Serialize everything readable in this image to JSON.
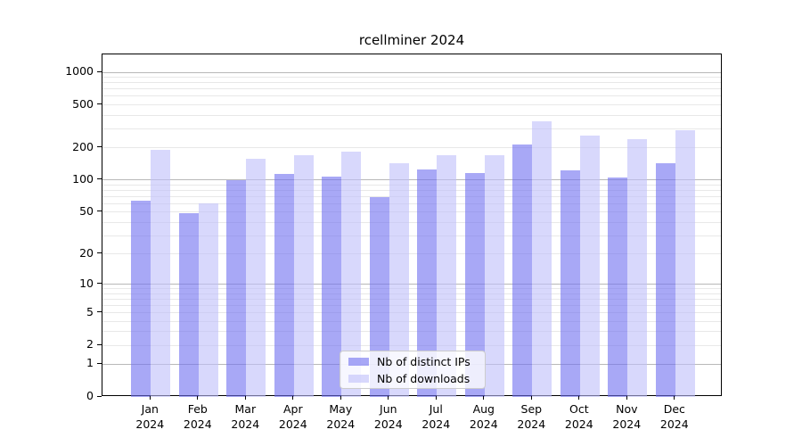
{
  "title": "rcellminer 2024",
  "colors": {
    "ips": "rgba(110,110,240,0.60)",
    "downloads": "rgba(190,190,250,0.60)",
    "grid_major": "#b8b8b8",
    "grid_minor": "#e8e8e8",
    "axis": "#000000",
    "legend_border": "#cccccc",
    "legend_bg": "rgba(255,255,255,0.8)"
  },
  "legend": {
    "items": [
      {
        "label": "Nb of distinct IPs",
        "series": "ips"
      },
      {
        "label": "Nb of downloads",
        "series": "downloads"
      }
    ]
  },
  "chart_data": {
    "type": "bar",
    "title": "rcellminer 2024",
    "categories": [
      "Jan 2024",
      "Feb 2024",
      "Mar 2024",
      "Apr 2024",
      "May 2024",
      "Jun 2024",
      "Jul 2024",
      "Aug 2024",
      "Sep 2024",
      "Oct 2024",
      "Nov 2024",
      "Dec 2024"
    ],
    "series": [
      {
        "name": "Nb of distinct IPs",
        "values": [
          64,
          49,
          99,
          114,
          107,
          69,
          125,
          116,
          213,
          123,
          105,
          144
        ]
      },
      {
        "name": "Nb of downloads",
        "values": [
          192,
          61,
          158,
          169,
          184,
          143,
          172,
          170,
          350,
          258,
          242,
          292
        ]
      }
    ],
    "xlabel": "",
    "ylabel": "",
    "y_scale": "log1p",
    "y_ticks": [
      0,
      1,
      2,
      5,
      10,
      20,
      50,
      100,
      200,
      500,
      1000
    ],
    "y_minor_gridlines": [
      2,
      3,
      4,
      5,
      6,
      7,
      8,
      9,
      20,
      30,
      40,
      50,
      60,
      70,
      80,
      90,
      200,
      300,
      400,
      500,
      600,
      700,
      800,
      900
    ],
    "y_major_gridlines": [
      1,
      10,
      100,
      1000
    ],
    "ylim": [
      0,
      1465
    ],
    "grid": true,
    "legend_position": "inside-bottom-center"
  }
}
